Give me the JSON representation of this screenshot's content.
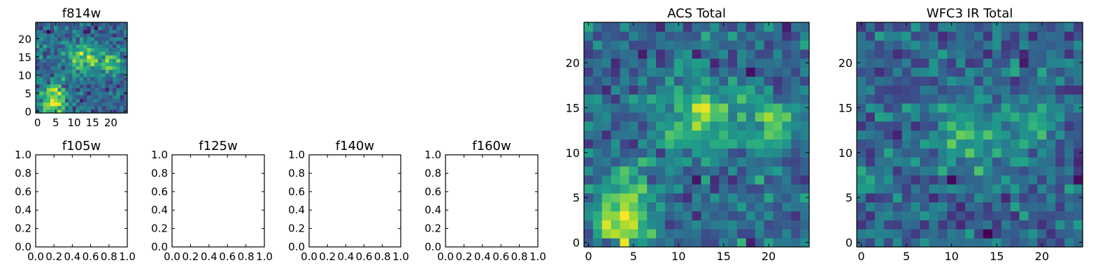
{
  "chart_data": [
    {
      "type": "heatmap",
      "title": "f814w",
      "colormap": "viridis",
      "grid_size": 25,
      "xlim": [
        -0.5,
        24.5
      ],
      "ylim": [
        -0.5,
        24.5
      ],
      "xticks": [
        0,
        5,
        10,
        15,
        20
      ],
      "yticks": [
        0,
        5,
        10,
        15,
        20
      ],
      "z_range": [
        -2.0,
        4.0
      ],
      "features": [
        {
          "x": 12,
          "y": 15,
          "peak": 2.6,
          "sigma": 3.2
        },
        {
          "x": 20,
          "y": 13,
          "peak": 2.4,
          "sigma": 2.0
        },
        {
          "x": 4,
          "y": 2,
          "peak": 3.0,
          "sigma": 2.4
        },
        {
          "x": 5,
          "y": 6,
          "peak": 1.8,
          "sigma": 2.0
        }
      ]
    },
    {
      "type": "heatmap",
      "title": "f105w",
      "empty": true,
      "xticks": [
        "0.0",
        "0.2",
        "0.4",
        "0.6",
        "0.8",
        "1.0"
      ],
      "yticks": [
        "0.0",
        "0.2",
        "0.4",
        "0.6",
        "0.8",
        "1.0"
      ]
    },
    {
      "type": "heatmap",
      "title": "f125w",
      "empty": true,
      "xticks": [
        "0.0",
        "0.2",
        "0.4",
        "0.6",
        "0.8",
        "1.0"
      ],
      "yticks": [
        "0.0",
        "0.2",
        "0.4",
        "0.6",
        "0.8",
        "1.0"
      ]
    },
    {
      "type": "heatmap",
      "title": "f140w",
      "empty": true,
      "xticks": [
        "0.0",
        "0.2",
        "0.4",
        "0.6",
        "0.8",
        "1.0"
      ],
      "yticks": [
        "0.0",
        "0.2",
        "0.4",
        "0.6",
        "0.8",
        "1.0"
      ]
    },
    {
      "type": "heatmap",
      "title": "f160w",
      "empty": true,
      "xticks": [
        "0.0",
        "0.2",
        "0.4",
        "0.6",
        "0.8",
        "1.0"
      ],
      "yticks": [
        "0.0",
        "0.2",
        "0.4",
        "0.6",
        "0.8",
        "1.0"
      ]
    },
    {
      "type": "heatmap",
      "title": "ACS Total",
      "colormap": "viridis",
      "grid_size": 25,
      "xlim": [
        -0.5,
        24.5
      ],
      "ylim": [
        -0.5,
        24.5
      ],
      "xticks": [
        0,
        5,
        10,
        15,
        20
      ],
      "yticks": [
        0,
        5,
        10,
        15,
        20
      ],
      "z_range": [
        -2.0,
        4.0
      ],
      "features": [
        {
          "x": 12,
          "y": 14,
          "peak": 2.6,
          "sigma": 3.0
        },
        {
          "x": 20,
          "y": 13,
          "peak": 2.4,
          "sigma": 2.0
        },
        {
          "x": 4,
          "y": 2,
          "peak": 3.0,
          "sigma": 2.4
        },
        {
          "x": 5,
          "y": 6,
          "peak": 1.8,
          "sigma": 2.0
        }
      ]
    },
    {
      "type": "heatmap",
      "title": "WFC3 IR Total",
      "colormap": "viridis",
      "grid_size": 25,
      "xlim": [
        -0.5,
        24.5
      ],
      "ylim": [
        -0.5,
        24.5
      ],
      "xticks": [
        0,
        5,
        10,
        15,
        20
      ],
      "yticks": [
        0,
        5,
        10,
        15,
        20
      ],
      "z_range": [
        -2.0,
        4.0
      ],
      "features": [
        {
          "x": 12,
          "y": 12,
          "peak": 1.8,
          "sigma": 2.5
        },
        {
          "x": 19,
          "y": 13,
          "peak": 1.8,
          "sigma": 2.0
        }
      ]
    }
  ]
}
